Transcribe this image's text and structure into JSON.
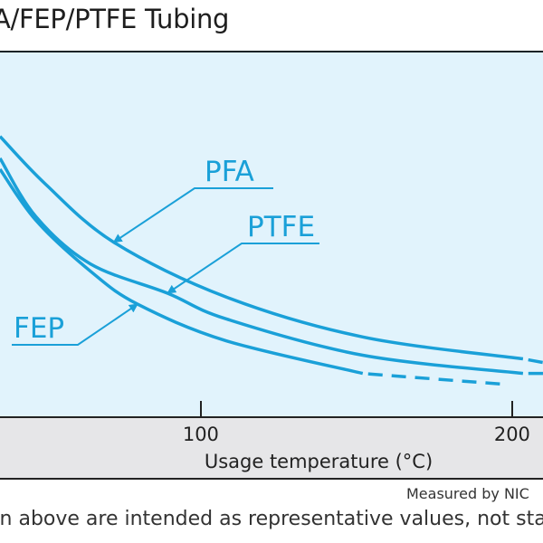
{
  "title": "A/FEP/PTFE Tubing",
  "footnote_measured": "Measured by NIC",
  "footnote_disclaimer": "en above are intended as representative values, not standa",
  "colors": {
    "plot_background": "#e1f3fc",
    "series_color": "#1aa0d8",
    "axis_band": "#e6e6e8",
    "text": "#222222"
  },
  "chart_data": {
    "type": "line",
    "title": "A/FEP/PTFE Tubing",
    "xlabel": "Usage temperature (°C)",
    "ylabel": "",
    "x_ticks": [
      100,
      200
    ],
    "x_tick_labels": [
      "100",
      "200"
    ],
    "xlim": [
      35.5,
      210
    ],
    "ylim": [
      0,
      1
    ],
    "y_note": "y-axis not visible; values are relative fraction of plot height",
    "grid": false,
    "series": [
      {
        "name": "PFA",
        "label": "PFA",
        "x": [
          35.5,
          50,
          72,
          108,
          152,
          203.5,
          210
        ],
        "y": [
          0.77,
          0.64,
          0.48,
          0.33,
          0.22,
          0.16,
          0.15
        ],
        "solid_until": 203.5,
        "dashed_after": 203.5
      },
      {
        "name": "PTFE",
        "label": "PTFE",
        "x": [
          35.5,
          47,
          64.6,
          89.3,
          108,
          152,
          203.5,
          210
        ],
        "y": [
          0.71,
          0.55,
          0.42,
          0.34,
          0.27,
          0.17,
          0.12,
          0.12
        ],
        "solid_until": 203.5,
        "dashed_after": 203.5
      },
      {
        "name": "FEP",
        "label": "FEP",
        "x": [
          35.5,
          47,
          64.6,
          79.7,
          108,
          152,
          197.7
        ],
        "y": [
          0.68,
          0.54,
          0.4,
          0.31,
          0.21,
          0.12,
          0.09
        ],
        "solid_until": 152,
        "dashed_after": 152
      }
    ],
    "annotations": [
      {
        "text": "PFA",
        "target_series": "PFA",
        "arrow_to": [
          72,
          0.48
        ]
      },
      {
        "text": "PTFE",
        "target_series": "PTFE",
        "arrow_to": [
          89.3,
          0.34
        ]
      },
      {
        "text": "FEP",
        "target_series": "FEP",
        "arrow_to": [
          79.7,
          0.31
        ]
      }
    ],
    "legend": "none"
  }
}
